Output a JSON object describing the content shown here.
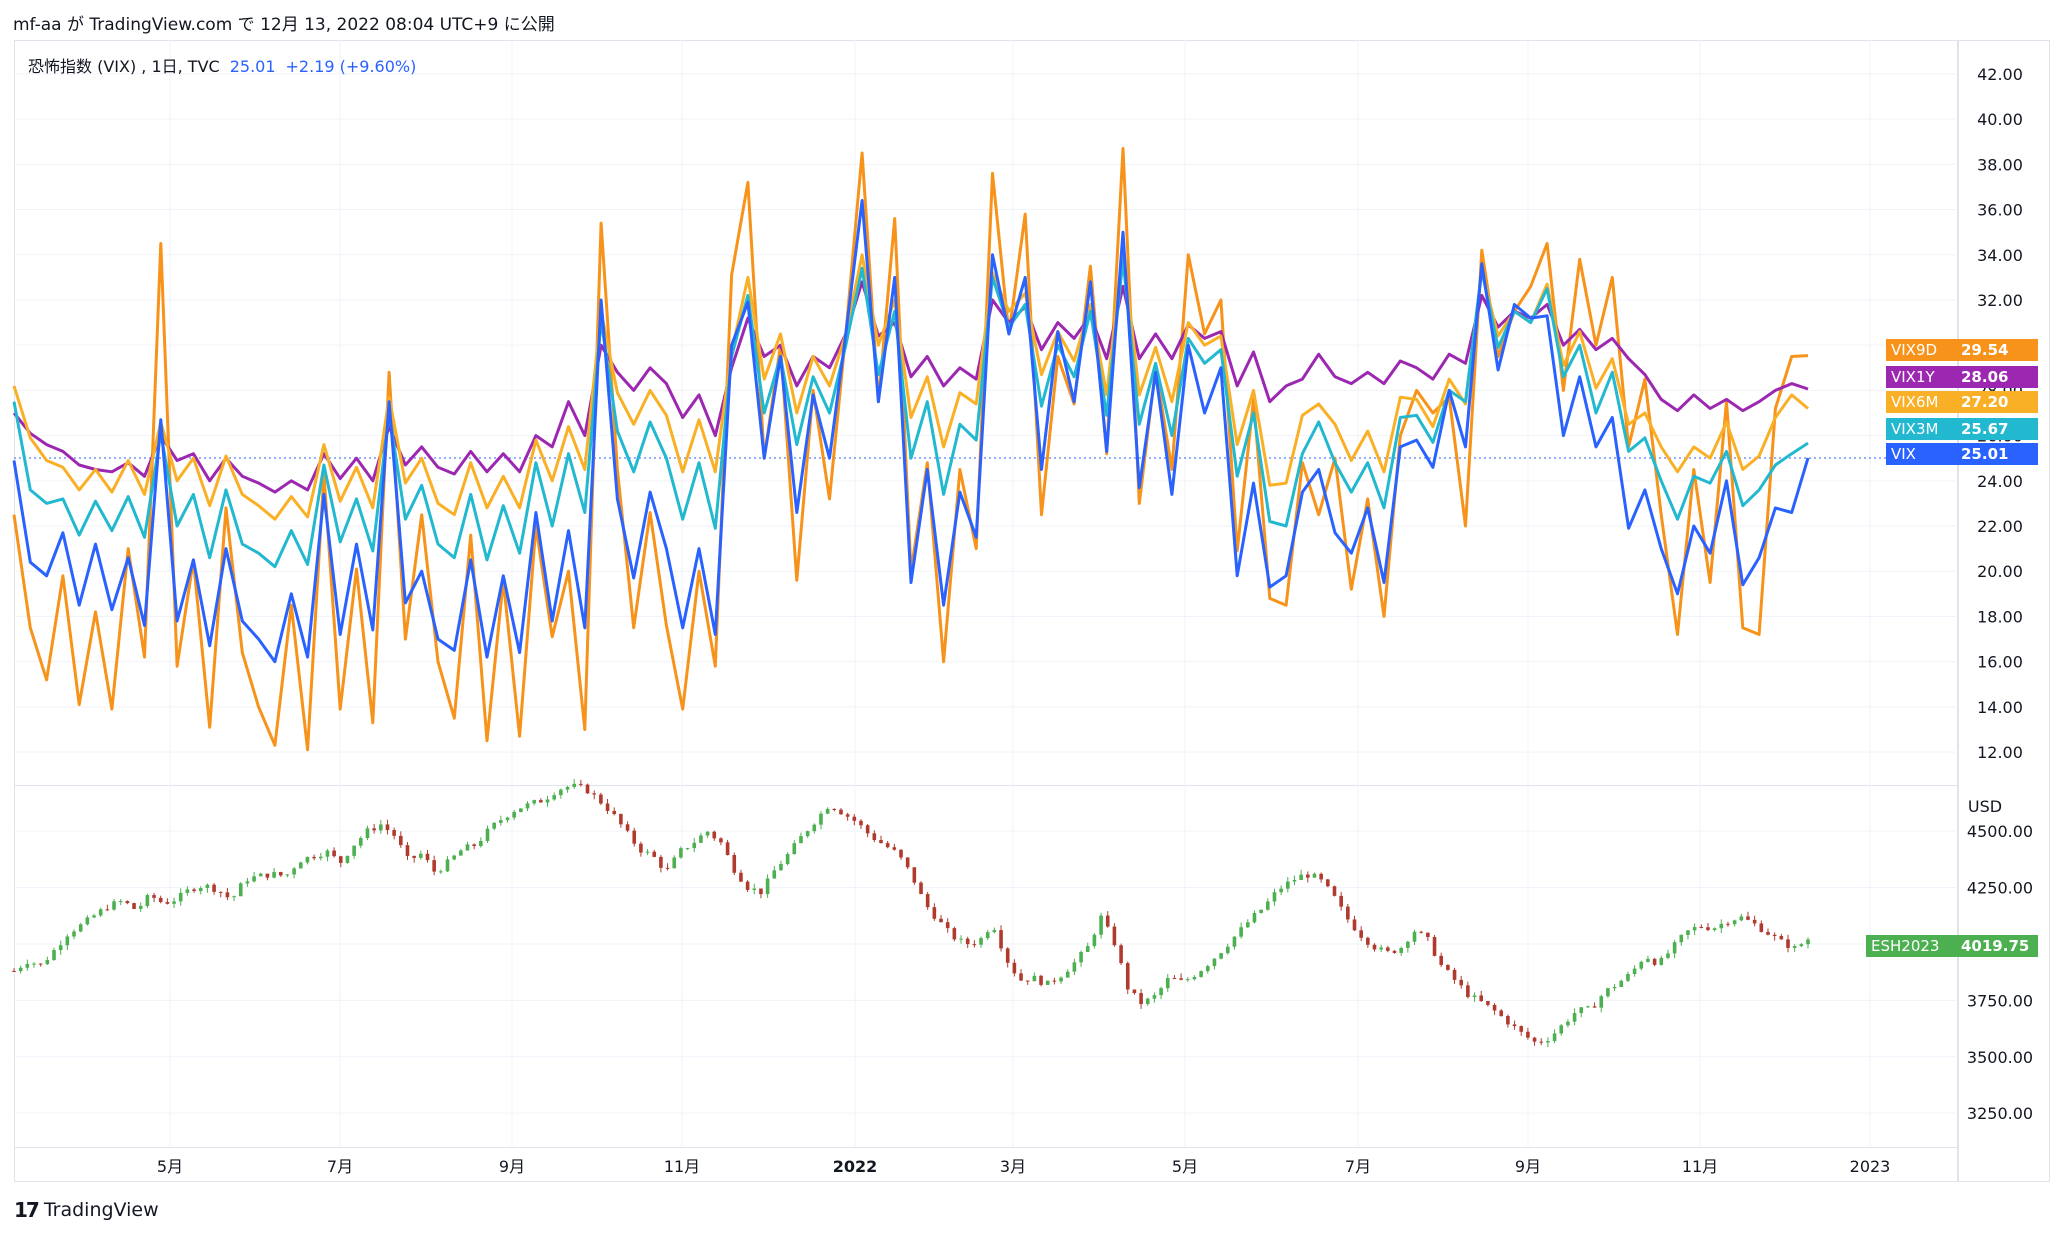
{
  "header": {
    "publish_text": "mf-aa が TradingView.com で 12月 13, 2022 08:04 UTC+9 に公開"
  },
  "legend": {
    "symbol_text": "恐怖指数 (VIX) , 1日, TVC",
    "last_value": "25.01",
    "change_text": "+2.19 (+9.60%)"
  },
  "brand": {
    "logo_text": "17",
    "name": "TradingView"
  },
  "colors": {
    "VIX": "#2962ff",
    "VIX3M": "#22b8cf",
    "VIX6M": "#f9b026",
    "VIX1Y": "#9c27b0",
    "VIX9D": "#f7931a",
    "candle_up": "#4caf50",
    "candle_down": "#b03a2e",
    "es_badge": "#4caf50"
  },
  "chart_data": [
    {
      "type": "line",
      "title": "恐怖指数 (VIX) , 1日, TVC",
      "ylim": [
        10.5,
        43.5
      ],
      "y_ticks": [
        "42.00",
        "40.00",
        "38.00",
        "36.00",
        "34.00",
        "32.00",
        "30.00",
        "28.00",
        "26.00",
        "24.00",
        "22.00",
        "20.00",
        "18.00",
        "16.00",
        "14.00",
        "12.00"
      ],
      "x_labels": [
        "5月",
        "7月",
        "9月",
        "11月",
        "2022",
        "3月",
        "5月",
        "7月",
        "9月",
        "11月",
        "2023"
      ],
      "grid": true,
      "series": [
        {
          "name": "VIX9D",
          "last_label": "29.54",
          "values": [
            22.5,
            17.5,
            15.2,
            19.8,
            14.1,
            18.2,
            13.9,
            21.0,
            16.2,
            34.5,
            15.8,
            20.5,
            13.1,
            22.8,
            16.4,
            14.0,
            12.3,
            18.5,
            12.1,
            24.3,
            13.9,
            20.1,
            13.3,
            28.8,
            17.0,
            22.5,
            16.0,
            13.5,
            21.6,
            12.5,
            19.6,
            12.7,
            22.0,
            17.1,
            20.0,
            13.0,
            35.4,
            24.5,
            17.5,
            22.6,
            17.6,
            13.9,
            20.0,
            15.8,
            33.1,
            37.2,
            25.0,
            30.0,
            19.6,
            28.0,
            23.2,
            30.5,
            38.5,
            27.5,
            35.6,
            20.0,
            24.8,
            16.0,
            24.5,
            21.0,
            37.6,
            30.5,
            35.8,
            22.5,
            29.5,
            27.4,
            33.5,
            25.2,
            38.7,
            23.0,
            29.0,
            24.5,
            34.0,
            30.5,
            32.0,
            20.9,
            27.6,
            18.8,
            18.5,
            24.8,
            22.5,
            25.0,
            19.2,
            23.2,
            18.0,
            26.0,
            28.0,
            27.0,
            27.7,
            22.0,
            34.2,
            29.5,
            31.5,
            32.6,
            34.5,
            28.0,
            33.8,
            30.0,
            33.0,
            25.5,
            28.5,
            22.5,
            17.2,
            24.5,
            19.5,
            27.5,
            17.5,
            17.2,
            27.2,
            29.5,
            29.54
          ]
        },
        {
          "name": "VIX1Y",
          "last_label": "28.06",
          "values": [
            27.0,
            26.1,
            25.6,
            25.3,
            24.7,
            24.5,
            24.4,
            24.8,
            24.2,
            26.0,
            24.9,
            25.2,
            24.0,
            25.0,
            24.2,
            23.9,
            23.5,
            24.0,
            23.6,
            25.2,
            24.1,
            25.0,
            24.0,
            26.4,
            24.7,
            25.5,
            24.6,
            24.3,
            25.3,
            24.4,
            25.2,
            24.4,
            26.0,
            25.5,
            27.5,
            26.0,
            30.0,
            28.8,
            28.0,
            29.0,
            28.3,
            26.8,
            27.8,
            26.0,
            29.0,
            31.2,
            29.5,
            30.0,
            28.2,
            29.5,
            29.0,
            30.5,
            32.8,
            30.4,
            31.0,
            28.6,
            29.5,
            28.2,
            29.0,
            28.5,
            32.0,
            31.0,
            31.7,
            29.8,
            31.0,
            30.3,
            31.3,
            29.4,
            32.6,
            29.4,
            30.5,
            29.4,
            30.9,
            30.3,
            30.6,
            28.2,
            29.7,
            27.5,
            28.2,
            28.5,
            29.6,
            28.6,
            28.3,
            28.8,
            28.3,
            29.3,
            29.0,
            28.5,
            29.6,
            29.2,
            32.2,
            30.8,
            31.5,
            31.2,
            31.8,
            30.0,
            30.7,
            29.8,
            30.3,
            29.4,
            28.7,
            27.6,
            27.1,
            27.8,
            27.2,
            27.6,
            27.1,
            27.5,
            28.0,
            28.3,
            28.06
          ]
        },
        {
          "name": "VIX6M",
          "last_label": "27.20",
          "values": [
            28.2,
            25.9,
            24.9,
            24.6,
            23.6,
            24.5,
            23.5,
            24.9,
            23.4,
            26.6,
            24.0,
            25.0,
            22.9,
            25.1,
            23.4,
            22.9,
            22.3,
            23.3,
            22.4,
            25.6,
            23.1,
            24.6,
            22.8,
            27.7,
            23.9,
            25.0,
            23.0,
            22.5,
            24.8,
            22.8,
            24.2,
            22.8,
            25.8,
            24.0,
            26.4,
            24.5,
            31.5,
            27.9,
            26.5,
            28.0,
            26.9,
            24.4,
            26.7,
            24.4,
            29.7,
            33.0,
            28.5,
            30.5,
            27.0,
            29.5,
            28.2,
            30.5,
            34.0,
            30.0,
            32.0,
            26.8,
            28.6,
            25.5,
            27.9,
            27.4,
            33.2,
            31.5,
            32.3,
            28.7,
            30.6,
            29.3,
            31.8,
            27.8,
            34.3,
            27.8,
            29.9,
            27.5,
            31.0,
            30.0,
            30.4,
            25.6,
            28.0,
            23.8,
            23.9,
            26.9,
            27.4,
            26.5,
            24.9,
            26.2,
            24.4,
            27.7,
            27.6,
            26.4,
            28.5,
            27.4,
            33.3,
            30.4,
            31.5,
            31.0,
            32.7,
            29.1,
            30.6,
            28.1,
            29.4,
            26.5,
            27.0,
            25.5,
            24.4,
            25.5,
            25.0,
            26.6,
            24.5,
            25.1,
            26.8,
            27.8,
            27.2
          ]
        },
        {
          "name": "VIX3M",
          "last_label": "25.67",
          "values": [
            27.5,
            23.6,
            23.0,
            23.2,
            21.6,
            23.1,
            21.8,
            23.3,
            21.5,
            26.1,
            22.0,
            23.4,
            20.6,
            23.6,
            21.2,
            20.8,
            20.2,
            21.8,
            20.3,
            24.7,
            21.3,
            23.2,
            20.9,
            27.0,
            22.3,
            23.8,
            21.2,
            20.6,
            23.4,
            20.5,
            22.9,
            20.8,
            24.8,
            22.0,
            25.2,
            22.6,
            31.1,
            26.2,
            24.4,
            26.6,
            25.0,
            22.3,
            24.8,
            21.9,
            29.5,
            32.2,
            27.0,
            29.5,
            25.6,
            28.6,
            27.0,
            30.0,
            33.4,
            28.7,
            31.5,
            25.0,
            27.5,
            23.4,
            26.5,
            25.8,
            33.0,
            30.8,
            31.8,
            27.3,
            30.0,
            28.6,
            31.5,
            26.9,
            33.8,
            26.5,
            29.2,
            26.0,
            30.3,
            29.2,
            29.8,
            24.2,
            27.0,
            22.2,
            22.0,
            25.2,
            26.6,
            24.8,
            23.5,
            24.8,
            22.8,
            26.8,
            26.9,
            25.7,
            28.0,
            27.5,
            33.3,
            29.9,
            31.5,
            31.0,
            32.5,
            28.6,
            30.0,
            27.0,
            28.8,
            25.3,
            25.9,
            24.0,
            22.3,
            24.2,
            23.9,
            25.3,
            22.9,
            23.6,
            24.7,
            25.2,
            25.67
          ]
        },
        {
          "name": "VIX",
          "last_label": "25.01",
          "values": [
            24.9,
            20.4,
            19.8,
            21.7,
            18.5,
            21.2,
            18.3,
            20.6,
            17.6,
            26.7,
            17.8,
            20.5,
            16.7,
            21.0,
            17.8,
            17.0,
            16.0,
            19.0,
            16.2,
            23.4,
            17.2,
            21.2,
            17.4,
            27.5,
            18.6,
            20.0,
            17.0,
            16.5,
            20.5,
            16.2,
            19.8,
            16.4,
            22.6,
            17.8,
            21.8,
            17.5,
            32.0,
            23.2,
            19.7,
            23.5,
            21.0,
            17.5,
            21.0,
            17.2,
            30.0,
            31.9,
            25.0,
            29.5,
            22.6,
            27.8,
            25.0,
            30.5,
            36.4,
            27.5,
            33.0,
            19.5,
            24.5,
            18.5,
            23.5,
            21.5,
            34.0,
            30.5,
            33.0,
            24.5,
            30.6,
            27.5,
            32.8,
            25.3,
            35.0,
            23.7,
            28.8,
            23.4,
            30.0,
            27.0,
            29.0,
            19.8,
            23.9,
            19.3,
            19.8,
            23.5,
            24.5,
            21.7,
            20.8,
            22.8,
            19.5,
            25.5,
            25.8,
            24.6,
            28.0,
            25.5,
            33.6,
            28.9,
            31.8,
            31.2,
            31.3,
            26.0,
            28.6,
            25.5,
            26.8,
            21.9,
            23.6,
            21.0,
            19.0,
            22.0,
            20.8,
            24.0,
            19.4,
            20.6,
            22.8,
            22.6,
            25.01
          ]
        }
      ]
    },
    {
      "type": "candlestick",
      "title": "ESH2023",
      "unit_label": "USD",
      "last_label": "4019.75",
      "ylim": [
        3100,
        4700
      ],
      "y_ticks": [
        "4500.00",
        "4250.00",
        "4000.00",
        "3750.00",
        "3500.00",
        "3250.00"
      ],
      "close_path": [
        3880,
        3925,
        3905,
        3975,
        4050,
        4085,
        4130,
        4170,
        4190,
        4150,
        4215,
        4180,
        4200,
        4245,
        4260,
        4240,
        4195,
        4285,
        4300,
        4310,
        4300,
        4370,
        4390,
        4410,
        4360,
        4440,
        4500,
        4530,
        4480,
        4370,
        4400,
        4315,
        4365,
        4420,
        4440,
        4510,
        4560,
        4600,
        4620,
        4640,
        4685,
        4700,
        4690,
        4640,
        4580,
        4500,
        4420,
        4390,
        4320,
        4410,
        4450,
        4500,
        4450,
        4330,
        4250,
        4230,
        4330,
        4400,
        4480,
        4550,
        4620,
        4580,
        4540,
        4480,
        4440,
        4400,
        4310,
        4180,
        4105,
        4035,
        4000,
        4010,
        4095,
        3935,
        3840,
        3850,
        3820,
        3860,
        3915,
        3985,
        4120,
        4000,
        3795,
        3735,
        3770,
        3850,
        3830,
        3870,
        3920,
        3980,
        4045,
        4110,
        4165,
        4240,
        4280,
        4310,
        4290,
        4220,
        4120,
        4045,
        3990,
        3960,
        3980,
        4060,
        4020,
        3905,
        3840,
        3775,
        3740,
        3700,
        3650,
        3600,
        3560,
        3585,
        3645,
        3705,
        3710,
        3785,
        3825,
        3870,
        3950,
        3910,
        3980,
        4050,
        4080,
        4070,
        4100,
        4120,
        4090,
        4050,
        4010,
        3980,
        4019.75
      ]
    }
  ]
}
